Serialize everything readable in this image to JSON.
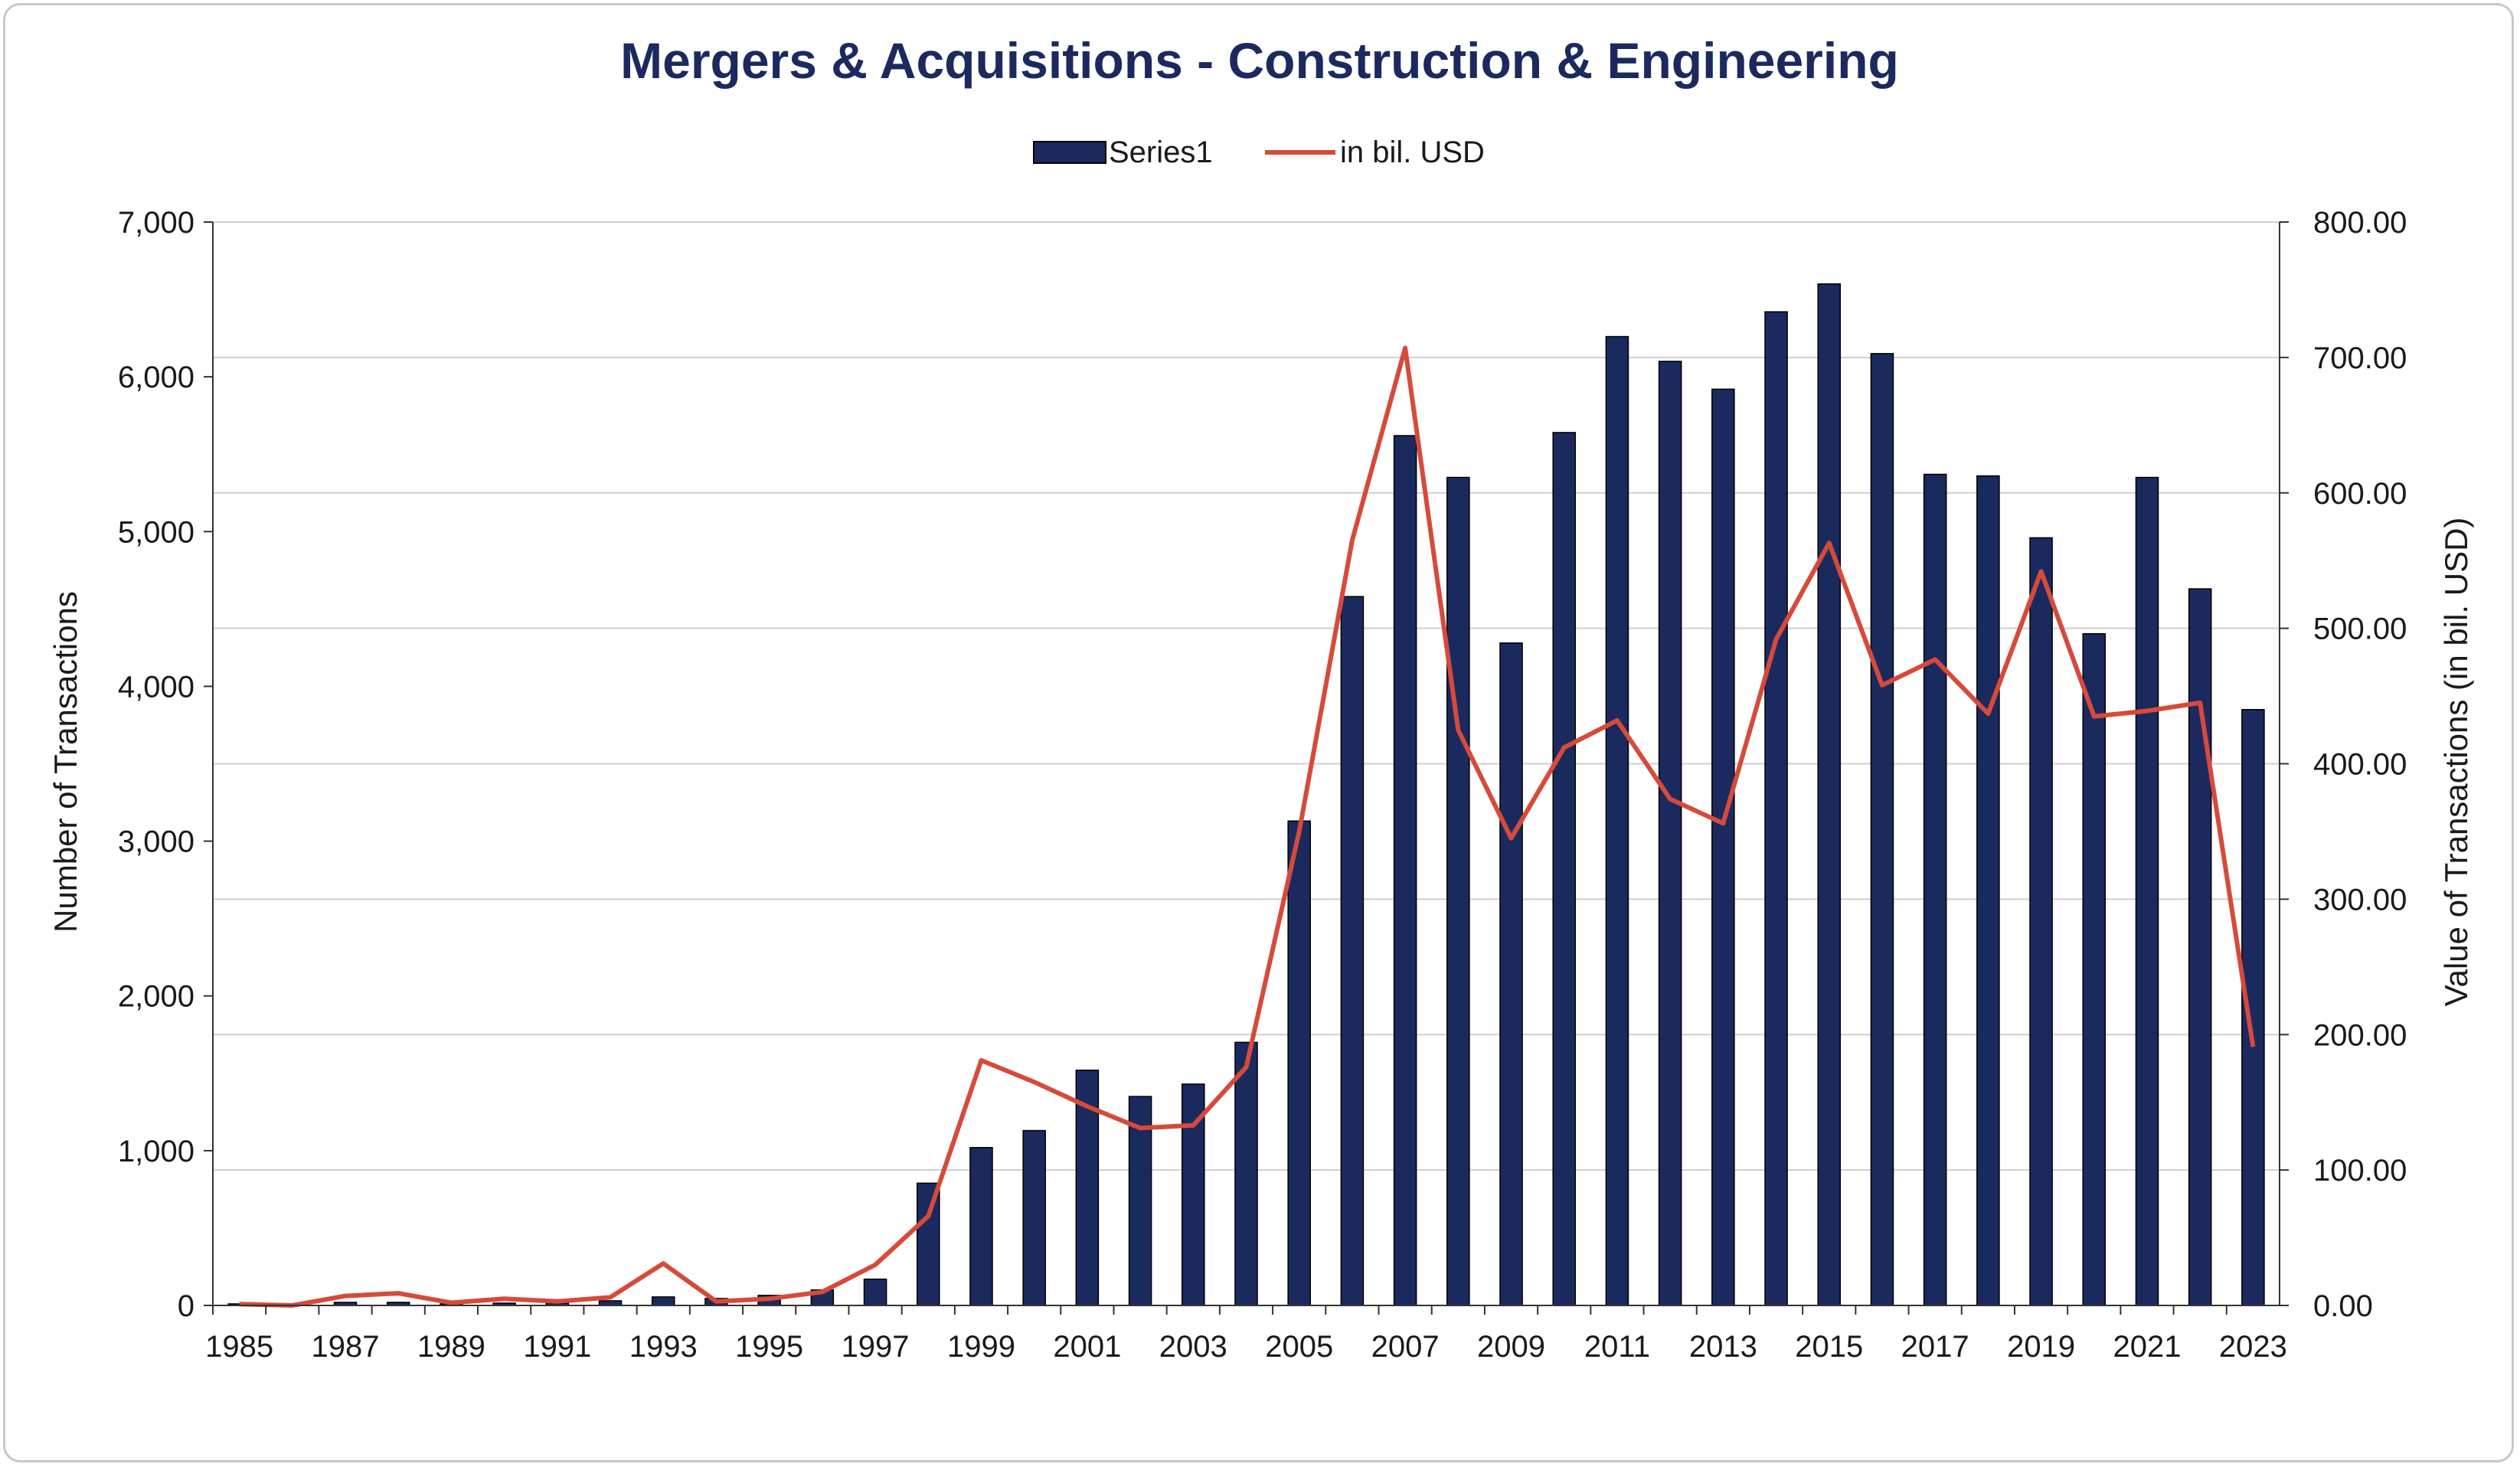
{
  "chart_data": {
    "type": "bar",
    "title": "Mergers & Acquisitions - Construction & Engineering",
    "ylabel": "Number of Transactions",
    "y2label": "Value of Transactions (in bil. USD)",
    "xlabel": "",
    "ylim": [
      0,
      7000
    ],
    "y2lim": [
      0,
      800
    ],
    "yticks": [
      "0",
      "1,000",
      "2,000",
      "3,000",
      "4,000",
      "5,000",
      "6,000",
      "7,000"
    ],
    "y2ticks": [
      "0.00",
      "100.00",
      "200.00",
      "300.00",
      "400.00",
      "500.00",
      "600.00",
      "700.00",
      "800.00"
    ],
    "xtick_labels": [
      "1985",
      "1987",
      "1989",
      "1991",
      "1993",
      "1995",
      "1997",
      "1999",
      "2001",
      "2003",
      "2005",
      "2007",
      "2009",
      "2011",
      "2013",
      "2015",
      "2017",
      "2019",
      "2021",
      "2023"
    ],
    "legend_position": "top-center",
    "grid": true,
    "categories": [
      "1985",
      "1986",
      "1987",
      "1988",
      "1989",
      "1990",
      "1991",
      "1992",
      "1993",
      "1994",
      "1995",
      "1996",
      "1997",
      "1998",
      "1999",
      "2000",
      "2001",
      "2002",
      "2003",
      "2004",
      "2005",
      "2006",
      "2007",
      "2008",
      "2009",
      "2010",
      "2011",
      "2012",
      "2013",
      "2014",
      "2015",
      "2016",
      "2017",
      "2018",
      "2019",
      "2020",
      "2021",
      "2022",
      "2023"
    ],
    "series": [
      {
        "name": "Series1",
        "type": "bar",
        "axis": "left",
        "color": "#1b2a5e",
        "values": [
          10,
          10,
          20,
          20,
          10,
          15,
          15,
          30,
          55,
          45,
          65,
          100,
          170,
          790,
          1020,
          1130,
          1520,
          1350,
          1430,
          1700,
          3130,
          4580,
          5620,
          5350,
          4280,
          5640,
          6260,
          6100,
          5920,
          6420,
          6600,
          6150,
          5370,
          5360,
          4960,
          4340,
          5350,
          4630,
          3850
        ]
      },
      {
        "name": "in bil. USD",
        "type": "line",
        "axis": "right",
        "color": "#d64a3b",
        "values": [
          1,
          0,
          7,
          9,
          2,
          5,
          3,
          6,
          31,
          3,
          5,
          10,
          30,
          66,
          181,
          165,
          147,
          131,
          133,
          176,
          350,
          565,
          707,
          425,
          345,
          412,
          432,
          374,
          356,
          492,
          563,
          458,
          477,
          437,
          542,
          435,
          439,
          445,
          191
        ]
      }
    ]
  }
}
